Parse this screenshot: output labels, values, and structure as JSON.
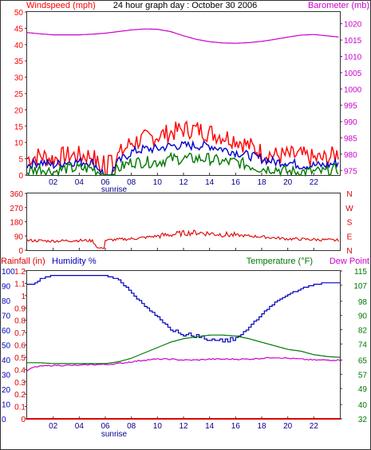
{
  "title": "24 hour graph day : October 30 2006",
  "colors": {
    "wind_gust": "#ff0000",
    "wind_avg": "#0000cc",
    "wind_low": "#007700",
    "barometer": "#cc00cc",
    "direction": "#dd0000",
    "rain": "#dd0000",
    "humidity": "#0000bb",
    "temperature": "#007700",
    "dewpoint": "#cc00cc",
    "border": "#333333"
  },
  "chart_data": [
    {
      "type": "line",
      "id": "wind-baro",
      "left_axis_label": "Windspeed (mph)",
      "right_axis_label": "Barometer (mb)",
      "x_ticks": [
        "02",
        "04",
        "06",
        "08",
        "10",
        "12",
        "14",
        "16",
        "18",
        "20",
        "22"
      ],
      "sunrise_label": "sunrise",
      "y_left_ticks": [
        "0",
        "5",
        "10",
        "15",
        "20",
        "25",
        "30",
        "35",
        "40",
        "45",
        "50"
      ],
      "y_left_range": [
        0,
        50
      ],
      "y_right_ticks": [
        "975",
        "980",
        "985",
        "990",
        "995",
        "1000",
        "1005",
        "1010",
        "1015",
        "1020"
      ],
      "y_right_range": [
        973.6,
        1023.6
      ],
      "x_range": [
        0,
        24
      ],
      "series": [
        {
          "key": "barometer",
          "axis": "right",
          "x": [
            0,
            1,
            2,
            3,
            4,
            5,
            6,
            7,
            8,
            9,
            10,
            11,
            12,
            13,
            14,
            15,
            16,
            17,
            18,
            19,
            20,
            21,
            22,
            23,
            24
          ],
          "values": [
            1017.3,
            1016.9,
            1016.6,
            1016.6,
            1016.6,
            1016.8,
            1017.1,
            1017.6,
            1018.1,
            1018.4,
            1018.3,
            1017.6,
            1016.3,
            1015.2,
            1014.5,
            1014.1,
            1014.0,
            1014.2,
            1014.6,
            1015.2,
            1015.9,
            1016.5,
            1016.7,
            1016.3,
            1015.9
          ]
        },
        {
          "key": "wind_gust",
          "axis": "left",
          "x": [
            0,
            1,
            2,
            3,
            4,
            5,
            6,
            7,
            8,
            9,
            10,
            11,
            12,
            13,
            14,
            15,
            16,
            17,
            18,
            19,
            20,
            21,
            22,
            23,
            24
          ],
          "values": [
            5,
            6,
            5,
            6,
            6,
            6,
            0,
            6,
            10,
            11,
            12,
            13,
            14,
            14,
            13,
            12,
            11,
            9,
            7,
            6,
            6,
            6,
            5,
            5,
            7
          ]
        },
        {
          "key": "wind_avg",
          "axis": "left",
          "x": [
            0,
            1,
            2,
            3,
            4,
            5,
            6,
            7,
            8,
            9,
            10,
            11,
            12,
            13,
            14,
            15,
            16,
            17,
            18,
            19,
            20,
            21,
            22,
            23,
            24
          ],
          "values": [
            3,
            4,
            3,
            4,
            4,
            4,
            0,
            4,
            7,
            8,
            8,
            9,
            9,
            9,
            9,
            8,
            7,
            6,
            5,
            4,
            4,
            3,
            3,
            3,
            4
          ]
        },
        {
          "key": "wind_low",
          "axis": "left",
          "x": [
            0,
            1,
            2,
            3,
            4,
            5,
            6,
            7,
            8,
            9,
            10,
            11,
            12,
            13,
            14,
            15,
            16,
            17,
            18,
            19,
            20,
            21,
            22,
            23,
            24
          ],
          "values": [
            1,
            2,
            1,
            2,
            2,
            2,
            0,
            2,
            4,
            4,
            4,
            5,
            5,
            5,
            5,
            4,
            4,
            3,
            2,
            2,
            1,
            1,
            1,
            1,
            2
          ]
        }
      ]
    },
    {
      "type": "scatter",
      "id": "wind-direction",
      "y_left_ticks": [
        "0",
        "90",
        "180",
        "270",
        "360"
      ],
      "y_left_range": [
        0,
        360
      ],
      "y_right_ticks": [
        "N",
        "E",
        "S",
        "W",
        "N"
      ],
      "x_range": [
        0,
        24
      ],
      "series": [
        {
          "key": "direction",
          "x": [
            0,
            1,
            2,
            3,
            4,
            5,
            5.5,
            6,
            7,
            8,
            9,
            10,
            11,
            12,
            13,
            14,
            15,
            16,
            17,
            18,
            19,
            20,
            21,
            22,
            23,
            24
          ],
          "values": [
            62,
            60,
            58,
            60,
            62,
            60,
            10,
            62,
            68,
            72,
            80,
            90,
            98,
            108,
            112,
            106,
            100,
            95,
            90,
            85,
            78,
            72,
            70,
            68,
            65,
            62
          ]
        }
      ]
    },
    {
      "type": "line",
      "id": "rain-hum-temp",
      "left_axis_label_1": "Rainfall (in)",
      "left_axis_label_2": "Humidity %",
      "right_axis_label_1": "Temperature (°F)",
      "right_axis_label_2": "Dew Point",
      "x_ticks": [
        "02",
        "04",
        "06",
        "08",
        "10",
        "12",
        "14",
        "16",
        "18",
        "20",
        "22"
      ],
      "sunrise_label": "sunrise",
      "y_rain_ticks": [
        "0",
        "0.1",
        "0.2",
        "0.3",
        "0.4",
        "0.5",
        "0.6",
        "0.7",
        "0.8",
        "0.9",
        "1",
        "1.1",
        "1.2"
      ],
      "y_rain_range": [
        0,
        1.2
      ],
      "y_hum_ticks": [
        "0",
        "10",
        "20",
        "30",
        "40",
        "50",
        "60",
        "70",
        "80",
        "90",
        "100"
      ],
      "y_hum_range": [
        0,
        100
      ],
      "y_temp_ticks": [
        "32",
        "40",
        "49",
        "57",
        "65",
        "74",
        "82",
        "90",
        "98",
        "107",
        "115"
      ],
      "y_temp_range": [
        32,
        115
      ],
      "x_range": [
        0,
        24
      ],
      "series": [
        {
          "key": "rain",
          "axis": "rain",
          "x": [
            0,
            24
          ],
          "values": [
            0,
            0
          ]
        },
        {
          "key": "humidity",
          "axis": "hum",
          "x": [
            0,
            0.5,
            1,
            2,
            3,
            4,
            5,
            6,
            7,
            8,
            9,
            10,
            11,
            12,
            13,
            14,
            15,
            16,
            17,
            18,
            19,
            20,
            21,
            22,
            23,
            24
          ],
          "values": [
            91,
            91,
            95,
            97,
            97,
            97,
            97,
            97,
            94,
            85,
            76,
            69,
            60,
            57,
            56,
            54,
            53,
            54,
            62,
            71,
            79,
            84,
            88,
            91,
            92,
            92
          ]
        },
        {
          "key": "temperature",
          "axis": "temp",
          "x": [
            0,
            1,
            2,
            3,
            4,
            5,
            6,
            7,
            8,
            9,
            10,
            11,
            12,
            13,
            14,
            15,
            16,
            17,
            18,
            19,
            20,
            21,
            22,
            23,
            24
          ],
          "values": [
            63.5,
            63.5,
            63,
            63,
            63,
            63,
            63,
            64,
            66,
            69,
            72,
            75,
            77,
            78,
            79,
            79,
            78.5,
            77,
            75,
            73,
            71,
            70,
            68,
            67,
            66.5
          ]
        },
        {
          "key": "dewpoint",
          "axis": "temp",
          "x": [
            0,
            0.5,
            1,
            2,
            3,
            4,
            5,
            6,
            7,
            8,
            9,
            10,
            11,
            12,
            13,
            14,
            15,
            16,
            17,
            18,
            19,
            20,
            21,
            22,
            23,
            24
          ],
          "values": [
            59,
            61,
            61.5,
            62,
            62,
            62,
            62.5,
            62.5,
            63,
            64,
            65,
            65.5,
            65.5,
            65,
            65,
            65.5,
            65.5,
            65.5,
            65.5,
            66,
            66.5,
            66,
            65.5,
            65,
            65,
            65
          ]
        }
      ]
    }
  ]
}
